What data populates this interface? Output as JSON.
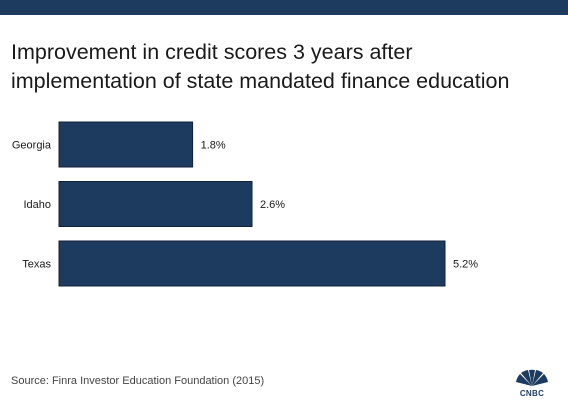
{
  "title": {
    "line1": "Improvement in credit scores 3 years after",
    "line2": "implementation of state mandated finance education"
  },
  "source": "Source:  Finra Investor Education Foundation (2015)",
  "logo": {
    "text": "CNBC",
    "icon": "cnbc-peacock-icon"
  },
  "colors": {
    "bar": "#1d3a5f",
    "top_bar": "#1d3a5f",
    "text": "#1a1a1a"
  },
  "chart_data": {
    "type": "bar",
    "orientation": "horizontal",
    "categories": [
      "Georgia",
      "Idaho",
      "Texas"
    ],
    "values": [
      1.8,
      2.6,
      5.2
    ],
    "value_labels": [
      "1.8%",
      "2.6%",
      "5.2%"
    ],
    "unit": "%",
    "title": "Improvement in credit scores 3 years after implementation of state mandated finance education",
    "xlabel": "",
    "ylabel": "",
    "xlim": [
      0,
      5.2
    ],
    "grid": false,
    "legend": "none"
  }
}
